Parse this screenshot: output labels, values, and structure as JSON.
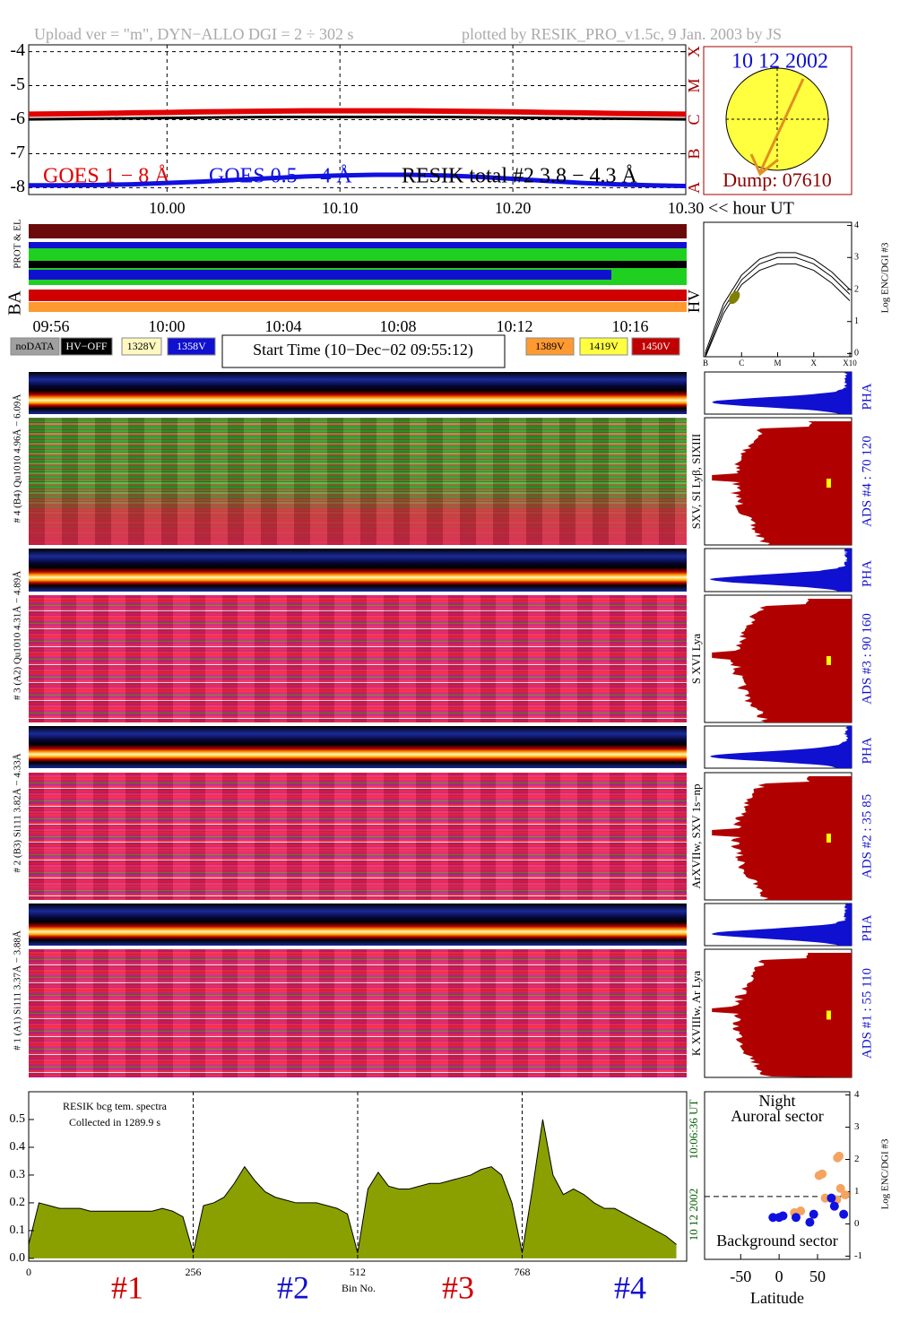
{
  "header": {
    "left": "Upload ver = \"m\", DYN−ALLO DGI =   2 ÷ 302 s",
    "right": "plotted by RESIK_PRO_v1.5c, 9 Jan. 2003 by JS"
  },
  "sun_inset": {
    "date": "10 12 2002",
    "dump": "Dump: 07610"
  },
  "status": {
    "prot": "PROT & EL",
    "side": "BA",
    "time_labels": [
      "09:56",
      "10:00",
      "10:04",
      "10:08",
      "10:12",
      "10:16"
    ],
    "legend": [
      {
        "label": "noDATA",
        "color": "#a0a0a0"
      },
      {
        "label": "HV−OFF",
        "color": "#000000"
      },
      {
        "label": "1328V",
        "color": "#fff8c0"
      },
      {
        "label": "1358V",
        "color": "#1010d0"
      },
      {
        "label": "1389V",
        "color": "#ff9a30"
      },
      {
        "label": "1419V",
        "color": "#ffff40"
      },
      {
        "label": "1450V",
        "color": "#c00000"
      }
    ],
    "start_time": "Start Time (10−Dec−02 09:55:12)"
  },
  "channels": [
    {
      "label": "# 4 (B4) Qu1010  4.96Å − 6.09Å",
      "ads": "ADS #4 :   70 120",
      "lines": "SXV, SI Lyβ, SIXIII",
      "pha": "PHA"
    },
    {
      "label": "# 3 (A2) Qu1010  4.31Å − 4.89Å",
      "ads": "ADS #3 :   90 160",
      "lines": "S XVI Lya",
      "pha": "PHA"
    },
    {
      "label": "# 2 (B3) Si111  3.82Å − 4.33Å",
      "ads": "ADS #2 :   35 85",
      "lines": "ArXVIIw, SXV 1s−np",
      "pha": "PHA"
    },
    {
      "label": "# 1 (A1) Si111  3.37Å − 3.88Å",
      "ads": "ADS #1 :   55 110",
      "lines": "K XVIIIw, Ar Lya",
      "pha": "PHA"
    }
  ],
  "chart_data": [
    {
      "type": "line",
      "xlabel": "<< hour UT",
      "xlim": [
        9.92,
        10.3
      ],
      "xticks": [
        {
          "value": 10.0,
          "label": "10.00"
        },
        {
          "value": 10.1,
          "label": "10.10"
        },
        {
          "value": 10.2,
          "label": "10.20"
        },
        {
          "value": 10.3,
          "label": "10.30"
        }
      ],
      "ylim": [
        -8.2,
        -3.8
      ],
      "yticks": [
        -4,
        -5,
        -6,
        -7,
        -8
      ],
      "class_ticks": [
        {
          "value": -8,
          "label": "A"
        },
        {
          "value": -7,
          "label": "B"
        },
        {
          "value": -6,
          "label": "C"
        },
        {
          "value": -5,
          "label": "M"
        },
        {
          "value": -4,
          "label": "X"
        }
      ],
      "grid": true,
      "x": [
        9.92,
        9.94,
        9.96,
        9.98,
        10.0,
        10.02,
        10.04,
        10.06,
        10.08,
        10.1,
        10.12,
        10.14,
        10.16,
        10.18,
        10.2,
        10.22,
        10.24,
        10.26,
        10.28,
        10.3
      ],
      "series": [
        {
          "name": "GOES 1 − 8 Å",
          "color": "#e00000",
          "values": [
            -5.84,
            -5.83,
            -5.82,
            -5.8,
            -5.79,
            -5.77,
            -5.76,
            -5.75,
            -5.74,
            -5.74,
            -5.74,
            -5.74,
            -5.75,
            -5.76,
            -5.77,
            -5.79,
            -5.8,
            -5.82,
            -5.83,
            -5.84
          ]
        },
        {
          "name": "GOES 0.5 − 4 Å",
          "color": "#1010e0",
          "values": [
            -7.93,
            -7.93,
            -7.92,
            -7.9,
            -7.86,
            -7.82,
            -7.77,
            -7.72,
            -7.67,
            -7.64,
            -7.62,
            -7.62,
            -7.64,
            -7.68,
            -7.74,
            -7.8,
            -7.86,
            -7.9,
            -7.93,
            -7.95
          ]
        },
        {
          "name": "RESIK total #2  3.8 − 4.3 Å",
          "color": "#000000",
          "values": [
            -5.99,
            -5.98,
            -5.97,
            -5.96,
            -5.95,
            -5.94,
            -5.93,
            -5.92,
            -5.92,
            -5.92,
            -5.92,
            -5.92,
            -5.92,
            -5.93,
            -5.94,
            -5.95,
            -5.96,
            -5.97,
            -5.98,
            -5.99
          ]
        }
      ]
    },
    {
      "type": "line",
      "side_label": "HV",
      "ylabel": "Log ENC/DGI #3",
      "xlim": [
        -7.05,
        -2.95
      ],
      "xticks": [
        {
          "value": -7,
          "label": "B"
        },
        {
          "value": -6,
          "label": "C"
        },
        {
          "value": -5,
          "label": "M"
        },
        {
          "value": -4,
          "label": "X"
        },
        {
          "value": -3,
          "label": "X10"
        }
      ],
      "ylim": [
        -0.1,
        4.1
      ],
      "yticks": [
        0,
        1,
        2,
        3,
        4
      ],
      "x": [
        -7,
        -6.5,
        -6,
        -5.5,
        -5,
        -4.5,
        -4,
        -3.5,
        -3
      ],
      "series": [
        {
          "color": "#000000",
          "values": [
            0.05,
            1.55,
            2.45,
            2.95,
            3.15,
            3.15,
            2.95,
            2.55,
            2.0
          ]
        },
        {
          "color": "#000000",
          "values": [
            -0.05,
            1.4,
            2.3,
            2.8,
            3.0,
            3.0,
            2.8,
            2.4,
            1.85
          ]
        },
        {
          "color": "#000000",
          "values": [
            -0.1,
            1.25,
            2.15,
            2.6,
            2.8,
            2.8,
            2.6,
            2.2,
            1.65
          ]
        }
      ],
      "highlight": {
        "x": -6.2,
        "value": 1.75,
        "color": "#808000"
      }
    },
    {
      "type": "area",
      "title": "RESIK bcg tem. spectra",
      "subtitle": "Collected in   1289.9 s",
      "xlabel": "Bin No.",
      "timestamp": [
        "10 12 2002",
        "10:06:36 UT"
      ],
      "xlim": [
        0,
        1024
      ],
      "xticks": [
        0,
        256,
        512,
        768
      ],
      "ylim": [
        -0.01,
        0.6
      ],
      "yticks": [
        {
          "value": 0,
          "label": "0.0"
        },
        {
          "value": 0.1,
          "label": "0.1"
        },
        {
          "value": 0.2,
          "label": "0.2"
        },
        {
          "value": 0.3,
          "label": "0.3"
        },
        {
          "value": 0.4,
          "label": "0.4"
        },
        {
          "value": 0.5,
          "label": "0.5"
        }
      ],
      "color": "#8aa000",
      "segment_labels": [
        {
          "text": "#1",
          "color": "#d00000"
        },
        {
          "text": "#2",
          "color": "#1010d0"
        },
        {
          "text": "#3",
          "color": "#d00000"
        },
        {
          "text": "#4",
          "color": "#1010d0"
        }
      ],
      "x": [
        0,
        16,
        32,
        48,
        64,
        80,
        96,
        112,
        128,
        144,
        160,
        176,
        192,
        208,
        224,
        240,
        256,
        272,
        288,
        304,
        320,
        336,
        352,
        368,
        384,
        400,
        416,
        432,
        448,
        464,
        480,
        496,
        512,
        528,
        544,
        560,
        576,
        592,
        608,
        624,
        640,
        656,
        672,
        688,
        704,
        720,
        736,
        752,
        768,
        784,
        800,
        816,
        832,
        848,
        864,
        880,
        896,
        912,
        928,
        944,
        960,
        976,
        992,
        1008
      ],
      "values": [
        0.05,
        0.2,
        0.19,
        0.18,
        0.18,
        0.18,
        0.17,
        0.17,
        0.17,
        0.17,
        0.17,
        0.17,
        0.17,
        0.18,
        0.17,
        0.15,
        0.02,
        0.19,
        0.2,
        0.22,
        0.27,
        0.33,
        0.28,
        0.24,
        0.22,
        0.21,
        0.2,
        0.2,
        0.2,
        0.19,
        0.18,
        0.16,
        0.02,
        0.25,
        0.31,
        0.26,
        0.25,
        0.25,
        0.26,
        0.27,
        0.27,
        0.28,
        0.29,
        0.3,
        0.32,
        0.33,
        0.3,
        0.2,
        0.02,
        0.25,
        0.5,
        0.3,
        0.23,
        0.25,
        0.23,
        0.2,
        0.18,
        0.18,
        0.16,
        0.14,
        0.12,
        0.1,
        0.08,
        0.05
      ]
    },
    {
      "type": "scatter",
      "title": "Night",
      "subtitle": "Auroral sector",
      "annotation": "Background sector",
      "xlabel": "Latitude",
      "ylabel": "Log ENC/DGI #3",
      "xlim": [
        -97,
        92
      ],
      "xticks": [
        -50,
        0,
        50
      ],
      "ylim": [
        -1.1,
        4.1
      ],
      "yticks": [
        -1,
        0,
        1,
        2,
        3,
        4
      ],
      "threshold": 0.85,
      "series": [
        {
          "color": "#f4a460",
          "x": [
            20,
            28,
            52,
            56,
            60,
            76,
            78,
            80,
            86,
            75
          ],
          "values": [
            0.35,
            0.4,
            1.5,
            1.55,
            0.8,
            2.05,
            2.1,
            1.1,
            0.9,
            0.75
          ]
        },
        {
          "color": "#1010e0",
          "x": [
            -8,
            0,
            5,
            22,
            40,
            45,
            68,
            72,
            84
          ],
          "values": [
            0.2,
            0.2,
            0.25,
            0.2,
            0.05,
            0.3,
            0.8,
            0.55,
            0.3
          ]
        }
      ]
    }
  ]
}
